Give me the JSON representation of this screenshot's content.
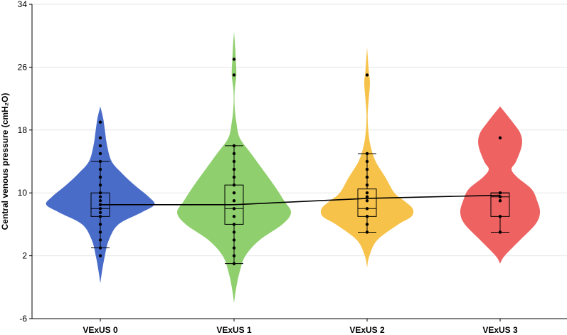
{
  "chart_data": {
    "type": "violin",
    "ylabel": "Central venous pressure (cmH₂O)",
    "ylim": [
      -6,
      34
    ],
    "yticks": [
      "-6",
      "2",
      "10",
      "18",
      "26",
      "34"
    ],
    "grid": true,
    "categories": [
      "VExUS 0",
      "VExUS 1",
      "VExUS 2",
      "VExUS 3"
    ],
    "colors": [
      "#4a6cc9",
      "#8fcf6e",
      "#f7c24a",
      "#ee6262"
    ],
    "violins": [
      {
        "category": "VExUS 0",
        "profile": [
          [
            -1.5,
            0
          ],
          [
            0,
            0.03
          ],
          [
            2,
            0.08
          ],
          [
            4,
            0.15
          ],
          [
            6,
            0.32
          ],
          [
            7.5,
            0.72
          ],
          [
            8.5,
            0.95
          ],
          [
            9.5,
            0.85
          ],
          [
            11,
            0.6
          ],
          [
            12.5,
            0.38
          ],
          [
            14,
            0.2
          ],
          [
            16,
            0.12
          ],
          [
            18,
            0.08
          ],
          [
            19.5,
            0.05
          ],
          [
            21,
            0
          ]
        ],
        "box": {
          "whisker_low": 3,
          "q1": 7,
          "median": 8,
          "q3": 10,
          "whisker_high": 14
        },
        "mean": 8.5,
        "points": [
          2,
          3,
          4,
          5,
          6,
          7,
          7.5,
          8,
          8.5,
          9,
          9.5,
          10,
          11,
          12,
          13,
          14,
          15,
          16,
          17,
          19
        ]
      },
      {
        "category": "VExUS 1",
        "profile": [
          [
            -4,
            0
          ],
          [
            -2,
            0.04
          ],
          [
            0,
            0.1
          ],
          [
            2,
            0.2
          ],
          [
            4,
            0.45
          ],
          [
            6,
            0.85
          ],
          [
            7.5,
            1.0
          ],
          [
            9,
            0.88
          ],
          [
            11,
            0.7
          ],
          [
            13,
            0.5
          ],
          [
            15,
            0.3
          ],
          [
            17,
            0.1
          ],
          [
            19,
            0.04
          ],
          [
            21,
            0.01
          ],
          [
            23,
            0.01
          ],
          [
            25,
            0.04
          ],
          [
            27,
            0.03
          ],
          [
            28.5,
            0.02
          ],
          [
            30.5,
            0
          ]
        ],
        "box": {
          "whisker_low": 1,
          "q1": 6,
          "median": 8,
          "q3": 11,
          "whisker_high": 16
        },
        "mean": 8.5,
        "points": [
          1,
          2,
          3,
          4,
          5,
          6,
          7,
          8,
          9,
          10,
          11,
          12,
          13,
          14,
          15,
          16,
          25,
          27
        ]
      },
      {
        "category": "VExUS 2",
        "profile": [
          [
            0.5,
            0
          ],
          [
            2,
            0.04
          ],
          [
            4,
            0.18
          ],
          [
            6,
            0.55
          ],
          [
            7,
            0.78
          ],
          [
            8,
            0.8
          ],
          [
            9,
            0.65
          ],
          [
            10,
            0.48
          ],
          [
            12,
            0.32
          ],
          [
            14,
            0.15
          ],
          [
            16,
            0.06
          ],
          [
            18,
            0.02
          ],
          [
            20,
            0.01
          ],
          [
            22,
            0.03
          ],
          [
            24,
            0.05
          ],
          [
            25.5,
            0.03
          ],
          [
            28.5,
            0
          ]
        ],
        "box": {
          "whisker_low": 5,
          "q1": 7,
          "median": 8,
          "q3": 10.5,
          "whisker_high": 15
        },
        "mean": 9.3,
        "points": [
          5,
          6,
          7,
          8,
          9,
          9.5,
          10,
          11,
          12,
          13,
          14,
          15,
          25
        ]
      },
      {
        "category": "VExUS 3",
        "profile": [
          [
            1,
            0
          ],
          [
            2,
            0.08
          ],
          [
            4,
            0.35
          ],
          [
            6,
            0.62
          ],
          [
            7.5,
            0.7
          ],
          [
            9,
            0.65
          ],
          [
            10.5,
            0.55
          ],
          [
            12,
            0.3
          ],
          [
            13,
            0.2
          ],
          [
            14,
            0.28
          ],
          [
            16,
            0.38
          ],
          [
            17.5,
            0.36
          ],
          [
            19,
            0.22
          ],
          [
            21,
            0
          ]
        ],
        "box": {
          "whisker_low": 5,
          "q1": 7,
          "median": 9.5,
          "q3": 10,
          "whisker_high": 10
        },
        "mean": 9.7,
        "points": [
          5,
          7,
          9,
          9.5,
          10,
          17
        ]
      }
    ],
    "mean_line": [
      8.5,
      8.5,
      9.3,
      9.7
    ]
  }
}
